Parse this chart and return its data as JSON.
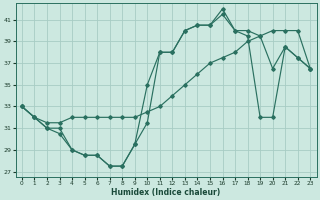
{
  "xlabel": "Humidex (Indice chaleur)",
  "bg_color": "#cce8e0",
  "grid_color": "#a8ccc4",
  "line_color": "#2a7060",
  "xlim": [
    -0.5,
    23.5
  ],
  "ylim": [
    26.5,
    42.5
  ],
  "yticks": [
    27,
    29,
    31,
    33,
    35,
    37,
    39,
    41
  ],
  "xticks": [
    0,
    1,
    2,
    3,
    4,
    5,
    6,
    7,
    8,
    9,
    10,
    11,
    12,
    13,
    14,
    15,
    16,
    17,
    18,
    19,
    20,
    21,
    22,
    23
  ],
  "line1_x": [
    0,
    1,
    2,
    3,
    4,
    5,
    6,
    7,
    8,
    9,
    10,
    11,
    12,
    13,
    14,
    15,
    16,
    17,
    18,
    19,
    20,
    21,
    22,
    23
  ],
  "line1_y": [
    33.0,
    32.0,
    31.0,
    30.5,
    29.0,
    28.5,
    28.5,
    27.5,
    27.5,
    29.5,
    31.5,
    38.0,
    38.0,
    40.0,
    40.5,
    40.5,
    42.0,
    40.0,
    40.0,
    39.5,
    36.5,
    38.5,
    37.5,
    36.5
  ],
  "line2_x": [
    0,
    1,
    2,
    3,
    4,
    5,
    6,
    7,
    8,
    9,
    10,
    11,
    12,
    13,
    14,
    15,
    16,
    17,
    18,
    19,
    20,
    21,
    22,
    23
  ],
  "line2_y": [
    33.0,
    32.0,
    31.5,
    31.5,
    32.0,
    32.0,
    32.0,
    32.0,
    32.0,
    32.0,
    32.5,
    33.0,
    34.0,
    35.0,
    36.0,
    37.0,
    37.5,
    38.0,
    39.0,
    39.5,
    40.0,
    40.0,
    40.0,
    36.5
  ],
  "line3_x": [
    0,
    1,
    2,
    3,
    4,
    5,
    6,
    7,
    8,
    9,
    10,
    11,
    12,
    13,
    14,
    15,
    16,
    17,
    18,
    19,
    20,
    21,
    22,
    23
  ],
  "line3_y": [
    33.0,
    32.0,
    31.0,
    31.0,
    29.0,
    28.5,
    28.5,
    27.5,
    27.5,
    29.5,
    35.0,
    38.0,
    38.0,
    40.0,
    40.5,
    40.5,
    41.5,
    40.0,
    39.5,
    32.0,
    32.0,
    38.5,
    37.5,
    36.5
  ]
}
